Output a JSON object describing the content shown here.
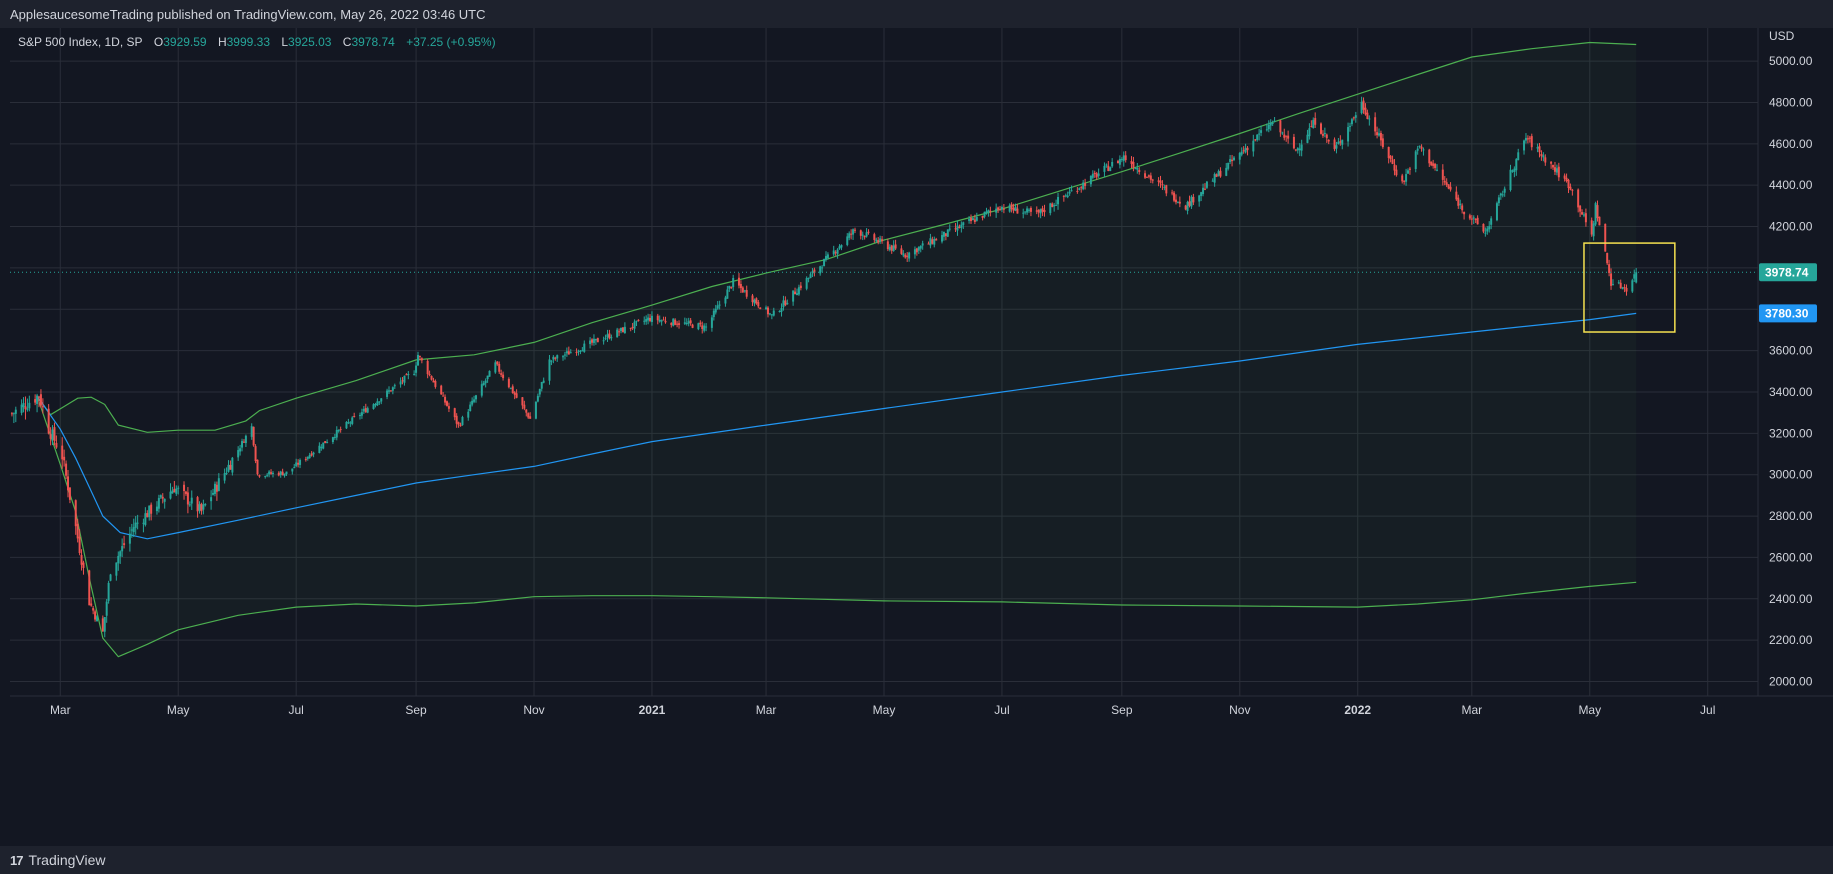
{
  "header": {
    "published": "ApplesaucesomeTrading published on TradingView.com, May 26, 2022 03:46 UTC"
  },
  "legend": {
    "symbol": "S&P 500 Index, 1D, SP",
    "open_label": "O",
    "open": "3929.59",
    "high_label": "H",
    "high": "3999.33",
    "low_label": "L",
    "low": "3925.03",
    "close_label": "C",
    "close": "3978.74",
    "change": "+37.25 (+0.95%)"
  },
  "footer": {
    "brand": "TradingView",
    "brand_mark": "17"
  },
  "colors": {
    "bg": "#131722",
    "up": "#26a69a",
    "down": "#ef5350",
    "band": "#4caf50",
    "ma": "#2196f3",
    "box": "#f5e150",
    "grid": "#2a2e39"
  },
  "chart_data": {
    "type": "candlestick",
    "currency": "USD",
    "ylim": [
      1930,
      5160
    ],
    "y_ticks": [
      2000,
      2200,
      2400,
      2600,
      2800,
      3000,
      3200,
      3400,
      3600,
      3800,
      4000,
      4200,
      4400,
      4600,
      4800,
      5000
    ],
    "x_range": [
      "2020-02-04",
      "2022-07-27"
    ],
    "x_ticks": [
      {
        "label": "Mar",
        "date": "2020-03-01",
        "bold": false
      },
      {
        "label": "May",
        "date": "2020-05-01",
        "bold": false
      },
      {
        "label": "Jul",
        "date": "2020-07-01",
        "bold": false
      },
      {
        "label": "Sep",
        "date": "2020-09-01",
        "bold": false
      },
      {
        "label": "Nov",
        "date": "2020-11-01",
        "bold": false
      },
      {
        "label": "2021",
        "date": "2021-01-01",
        "bold": true
      },
      {
        "label": "Mar",
        "date": "2021-03-01",
        "bold": false
      },
      {
        "label": "May",
        "date": "2021-05-01",
        "bold": false
      },
      {
        "label": "Jul",
        "date": "2021-07-01",
        "bold": false
      },
      {
        "label": "Sep",
        "date": "2021-09-01",
        "bold": false
      },
      {
        "label": "Nov",
        "date": "2021-11-01",
        "bold": false
      },
      {
        "label": "2022",
        "date": "2022-01-01",
        "bold": true
      },
      {
        "label": "Mar",
        "date": "2022-03-01",
        "bold": false
      },
      {
        "label": "May",
        "date": "2022-05-01",
        "bold": false
      },
      {
        "label": "Jul",
        "date": "2022-07-01",
        "bold": false
      }
    ],
    "price_path": [
      [
        "2020-02-05",
        3295
      ],
      [
        "2020-02-19",
        3386
      ],
      [
        "2020-02-24",
        3225
      ],
      [
        "2020-03-02",
        3090
      ],
      [
        "2020-03-09",
        2746
      ],
      [
        "2020-03-16",
        2386
      ],
      [
        "2020-03-23",
        2237
      ],
      [
        "2020-03-27",
        2541
      ],
      [
        "2020-04-08",
        2750
      ],
      [
        "2020-04-29",
        2939
      ],
      [
        "2020-05-13",
        2820
      ],
      [
        "2020-06-08",
        3232
      ],
      [
        "2020-06-11",
        3002
      ],
      [
        "2020-06-26",
        3009
      ],
      [
        "2020-07-31",
        3271
      ],
      [
        "2020-08-31",
        3500
      ],
      [
        "2020-09-02",
        3580
      ],
      [
        "2020-09-23",
        3237
      ],
      [
        "2020-10-12",
        3534
      ],
      [
        "2020-10-30",
        3270
      ],
      [
        "2020-11-09",
        3550
      ],
      [
        "2020-12-31",
        3756
      ],
      [
        "2021-01-29",
        3714
      ],
      [
        "2021-02-12",
        3934
      ],
      [
        "2021-03-04",
        3768
      ],
      [
        "2021-04-16",
        4185
      ],
      [
        "2021-05-12",
        4063
      ],
      [
        "2021-06-30",
        4297
      ],
      [
        "2021-07-19",
        4258
      ],
      [
        "2021-09-02",
        4537
      ],
      [
        "2021-10-04",
        4300
      ],
      [
        "2021-11-18",
        4704
      ],
      [
        "2021-11-30",
        4567
      ],
      [
        "2021-12-10",
        4712
      ],
      [
        "2021-12-20",
        4568
      ],
      [
        "2022-01-03",
        4796
      ],
      [
        "2022-01-24",
        4410
      ],
      [
        "2022-02-02",
        4589
      ],
      [
        "2022-02-24",
        4288
      ],
      [
        "2022-03-08",
        4170
      ],
      [
        "2022-03-29",
        4631
      ],
      [
        "2022-04-21",
        4393
      ],
      [
        "2022-05-02",
        4155
      ],
      [
        "2022-05-04",
        4300
      ],
      [
        "2022-05-12",
        3930
      ],
      [
        "2022-05-20",
        3901
      ],
      [
        "2022-05-25",
        3978
      ]
    ],
    "series": [
      {
        "points": [
          [
            "2020-02-18",
            3380
          ],
          [
            "2020-02-25",
            3290
          ],
          [
            "2020-03-03",
            3330
          ],
          [
            "2020-03-10",
            3370
          ],
          [
            "2020-03-17",
            3375
          ],
          [
            "2020-03-24",
            3340
          ],
          [
            "2020-03-31",
            3240
          ],
          [
            "2020-04-15",
            3205
          ],
          [
            "2020-05-01",
            3215
          ],
          [
            "2020-05-20",
            3215
          ],
          [
            "2020-06-05",
            3260
          ],
          [
            "2020-06-12",
            3310
          ],
          [
            "2020-07-01",
            3370
          ],
          [
            "2020-08-01",
            3455
          ],
          [
            "2020-09-01",
            3555
          ],
          [
            "2020-10-01",
            3580
          ],
          [
            "2020-11-01",
            3640
          ],
          [
            "2020-12-01",
            3735
          ],
          [
            "2021-01-01",
            3820
          ],
          [
            "2021-02-01",
            3910
          ],
          [
            "2021-03-01",
            3975
          ],
          [
            "2021-04-01",
            4040
          ],
          [
            "2021-05-01",
            4135
          ],
          [
            "2021-06-01",
            4210
          ],
          [
            "2021-07-01",
            4285
          ],
          [
            "2021-08-01",
            4375
          ],
          [
            "2021-09-01",
            4465
          ],
          [
            "2021-10-01",
            4555
          ],
          [
            "2021-11-01",
            4650
          ],
          [
            "2021-12-01",
            4745
          ],
          [
            "2022-01-01",
            4840
          ],
          [
            "2022-02-01",
            4935
          ],
          [
            "2022-03-01",
            5020
          ],
          [
            "2022-04-01",
            5060
          ],
          [
            "2022-05-01",
            5090
          ],
          [
            "2022-05-25",
            5080
          ]
        ]
      },
      {
        "points": [
          [
            "2020-02-18",
            3380
          ],
          [
            "2020-03-01",
            3050
          ],
          [
            "2020-03-09",
            2820
          ],
          [
            "2020-03-16",
            2500
          ],
          [
            "2020-03-23",
            2210
          ],
          [
            "2020-03-31",
            2120
          ],
          [
            "2020-04-15",
            2180
          ],
          [
            "2020-05-01",
            2250
          ],
          [
            "2020-06-01",
            2320
          ],
          [
            "2020-07-01",
            2360
          ],
          [
            "2020-08-01",
            2375
          ],
          [
            "2020-09-01",
            2365
          ],
          [
            "2020-10-01",
            2380
          ],
          [
            "2020-11-01",
            2410
          ],
          [
            "2020-12-01",
            2415
          ],
          [
            "2021-01-01",
            2415
          ],
          [
            "2021-02-01",
            2410
          ],
          [
            "2021-03-01",
            2405
          ],
          [
            "2021-05-01",
            2390
          ],
          [
            "2021-07-01",
            2385
          ],
          [
            "2021-09-01",
            2370
          ],
          [
            "2021-11-01",
            2365
          ],
          [
            "2022-01-01",
            2360
          ],
          [
            "2022-02-01",
            2375
          ],
          [
            "2022-03-01",
            2395
          ],
          [
            "2022-04-01",
            2430
          ],
          [
            "2022-05-01",
            2460
          ],
          [
            "2022-05-25",
            2480
          ]
        ]
      },
      {
        "points": [
          [
            "2020-02-18",
            3380
          ],
          [
            "2020-03-01",
            3220
          ],
          [
            "2020-03-09",
            3080
          ],
          [
            "2020-03-16",
            2940
          ],
          [
            "2020-03-23",
            2800
          ],
          [
            "2020-04-01",
            2720
          ],
          [
            "2020-04-15",
            2690
          ],
          [
            "2020-05-01",
            2720
          ],
          [
            "2020-06-01",
            2780
          ],
          [
            "2020-07-01",
            2840
          ],
          [
            "2020-08-01",
            2900
          ],
          [
            "2020-09-01",
            2960
          ],
          [
            "2020-10-01",
            3000
          ],
          [
            "2020-11-01",
            3040
          ],
          [
            "2020-12-01",
            3100
          ],
          [
            "2021-01-01",
            3160
          ],
          [
            "2021-03-01",
            3240
          ],
          [
            "2021-05-01",
            3320
          ],
          [
            "2021-07-01",
            3400
          ],
          [
            "2021-09-01",
            3480
          ],
          [
            "2021-11-01",
            3550
          ],
          [
            "2022-01-01",
            3630
          ],
          [
            "2022-03-01",
            3690
          ],
          [
            "2022-05-01",
            3750
          ],
          [
            "2022-05-25",
            3780
          ]
        ]
      }
    ],
    "price_labels": [
      {
        "value": 3978.74,
        "text": "3978.74",
        "color": "#26a69a"
      },
      {
        "value": 3780.3,
        "text": "3780.30",
        "color": "#2196f3"
      }
    ],
    "highlight_box": {
      "x0": "2022-04-28",
      "x1": "2022-06-14",
      "y0": 3690,
      "y1": 4120
    },
    "last_price": 3978.74
  }
}
